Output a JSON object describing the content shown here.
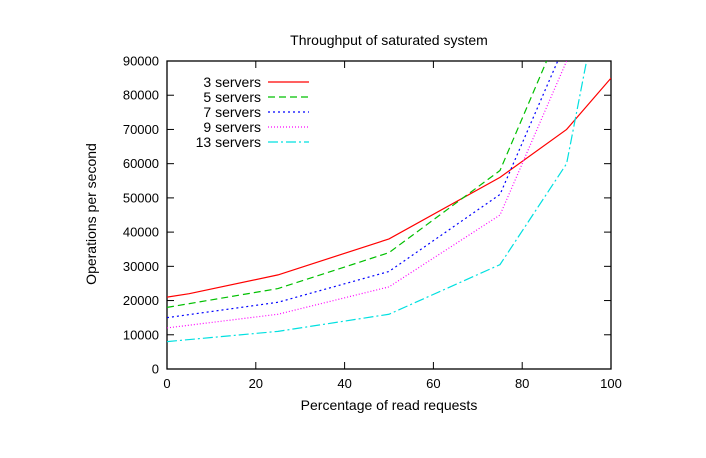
{
  "chart_data": {
    "type": "line",
    "title": "Throughput of saturated system",
    "xlabel": "Percentage of read requests",
    "ylabel": "Operations per second",
    "xlim": [
      0,
      100
    ],
    "ylim": [
      0,
      90000
    ],
    "xticks": [
      0,
      20,
      40,
      60,
      80,
      100
    ],
    "yticks": [
      0,
      10000,
      20000,
      30000,
      40000,
      50000,
      60000,
      70000,
      80000,
      90000
    ],
    "grid": false,
    "legend_position": "top-left",
    "series": [
      {
        "name": "3 servers",
        "color": "#ff0000",
        "dash": "",
        "points": [
          [
            0,
            21000
          ],
          [
            5,
            22000
          ],
          [
            25,
            27500
          ],
          [
            50,
            38000
          ],
          [
            75,
            56000
          ],
          [
            90,
            70000
          ],
          [
            100,
            85000
          ]
        ]
      },
      {
        "name": "5 servers",
        "color": "#00c000",
        "dash": "7,4",
        "points": [
          [
            0,
            18000
          ],
          [
            25,
            23500
          ],
          [
            50,
            34000
          ],
          [
            75,
            58000
          ],
          [
            85.5,
            90000
          ]
        ]
      },
      {
        "name": "7 servers",
        "color": "#0000ff",
        "dash": "2,3",
        "points": [
          [
            0,
            15000
          ],
          [
            25,
            19500
          ],
          [
            50,
            28500
          ],
          [
            75,
            51000
          ],
          [
            88,
            90000
          ]
        ]
      },
      {
        "name": "9 servers",
        "color": "#ff00ff",
        "dash": "1,2",
        "points": [
          [
            0,
            12000
          ],
          [
            25,
            16000
          ],
          [
            50,
            24000
          ],
          [
            75,
            45000
          ],
          [
            90,
            90000
          ]
        ]
      },
      {
        "name": "13 servers",
        "color": "#00e0e0",
        "dash": "10,3,2,3",
        "points": [
          [
            0,
            8000
          ],
          [
            25,
            11000
          ],
          [
            50,
            16000
          ],
          [
            75,
            30500
          ],
          [
            90,
            60000
          ],
          [
            94.5,
            90000
          ]
        ]
      }
    ]
  }
}
